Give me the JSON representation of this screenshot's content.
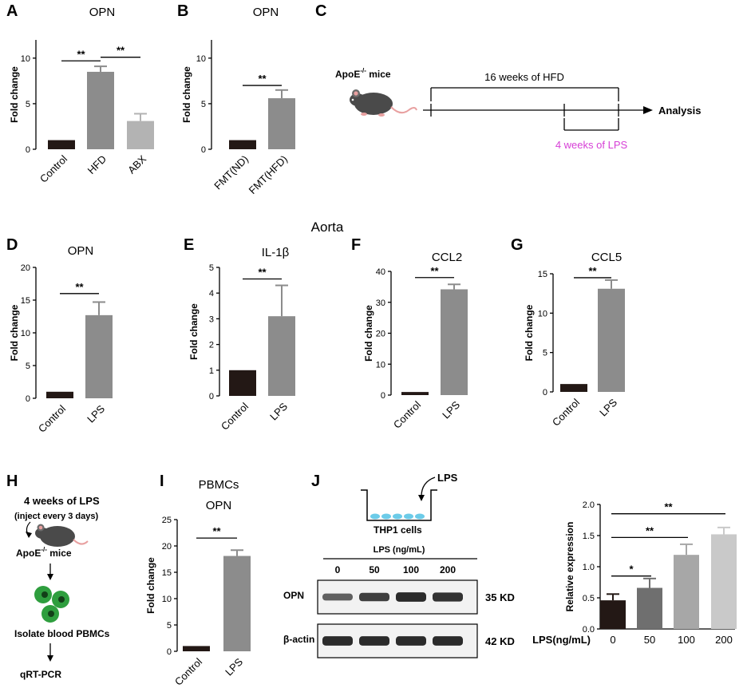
{
  "panels": {
    "A": "A",
    "B": "B",
    "C": "C",
    "D": "D",
    "E": "E",
    "F": "F",
    "G": "G",
    "H": "H",
    "I": "I",
    "J": "J"
  },
  "section_title": "Aorta",
  "colors": {
    "black_bar": "#231815",
    "grey_bar": "#8c8c8c",
    "light_bar": "#b3b3b3",
    "lighter_bar": "#c9c9c9",
    "lps_pink": "#d63fd6",
    "cell_blue": "#6ccbe8",
    "pbmc_green": "#2e9e3e"
  },
  "chart_data": [
    {
      "id": "A",
      "type": "bar",
      "title": "OPN",
      "xlabel": "",
      "ylabel": "Fold change",
      "categories": [
        "Control",
        "HFD",
        "ABX"
      ],
      "values": [
        1.0,
        8.5,
        3.1
      ],
      "errors": [
        0.0,
        0.6,
        0.8
      ],
      "ylim": [
        0,
        12
      ],
      "yticks": [
        "0",
        "5",
        "10"
      ],
      "sig": [
        "**",
        "**"
      ]
    },
    {
      "id": "B",
      "type": "bar",
      "title": "OPN",
      "xlabel": "",
      "ylabel": "Fold change",
      "categories": [
        "FMT(ND)",
        "FMT(HFD)"
      ],
      "values": [
        1.0,
        5.6
      ],
      "errors": [
        0.0,
        0.9
      ],
      "ylim": [
        0,
        12
      ],
      "yticks": [
        "0",
        "5",
        "10"
      ],
      "sig": [
        "**"
      ]
    },
    {
      "id": "D",
      "type": "bar",
      "title": "OPN",
      "xlabel": "",
      "ylabel": "Fold change",
      "categories": [
        "Control",
        "LPS"
      ],
      "values": [
        1.0,
        12.7
      ],
      "errors": [
        0.0,
        2.0
      ],
      "ylim": [
        0,
        20
      ],
      "yticks": [
        "0",
        "5",
        "10",
        "15",
        "20"
      ],
      "sig": [
        "**"
      ]
    },
    {
      "id": "E",
      "type": "bar",
      "title": "IL-1β",
      "xlabel": "",
      "ylabel": "Fold change",
      "categories": [
        "Control",
        "LPS"
      ],
      "values": [
        1.0,
        3.1
      ],
      "errors": [
        0.0,
        1.2
      ],
      "ylim": [
        0,
        5
      ],
      "yticks": [
        "0",
        "1",
        "2",
        "3",
        "4",
        "5"
      ],
      "sig": [
        "**"
      ]
    },
    {
      "id": "F",
      "type": "bar",
      "title": "CCL2",
      "xlabel": "",
      "ylabel": "Fold change",
      "categories": [
        "Control",
        "LPS"
      ],
      "values": [
        1.0,
        34.2
      ],
      "errors": [
        0.0,
        1.6
      ],
      "ylim": [
        0,
        40
      ],
      "yticks": [
        "0",
        "10",
        "20",
        "30",
        "40"
      ],
      "sig": [
        "**"
      ]
    },
    {
      "id": "G",
      "type": "bar",
      "title": "CCL5",
      "xlabel": "",
      "ylabel": "Fold change",
      "categories": [
        "Control",
        "LPS"
      ],
      "values": [
        1.0,
        13.1
      ],
      "errors": [
        0.0,
        1.1
      ],
      "ylim": [
        0,
        15
      ],
      "yticks": [
        "0",
        "5",
        "10",
        "15"
      ],
      "sig": [
        "**"
      ]
    },
    {
      "id": "I",
      "type": "bar",
      "title": "OPN",
      "subtitle": "PBMCs",
      "xlabel": "",
      "ylabel": "Fold change",
      "categories": [
        "Control",
        "LPS"
      ],
      "values": [
        1.0,
        18.1
      ],
      "errors": [
        0.0,
        1.1
      ],
      "ylim": [
        0,
        25
      ],
      "yticks": [
        "0",
        "5",
        "10",
        "15",
        "20",
        "25"
      ],
      "sig": [
        "**"
      ]
    },
    {
      "id": "J",
      "type": "bar",
      "title": "",
      "xlabel": "LPS(ng/mL)",
      "ylabel": "Relative expression",
      "categories": [
        "0",
        "50",
        "100",
        "200"
      ],
      "values": [
        0.46,
        0.66,
        1.19,
        1.52
      ],
      "errors": [
        0.1,
        0.15,
        0.17,
        0.11
      ],
      "ylim": [
        0,
        2.0
      ],
      "yticks": [
        "0.0",
        "0.5",
        "1.0",
        "1.5",
        "2.0"
      ],
      "sig": [
        "*",
        "**",
        "**"
      ]
    }
  ],
  "panel_C": {
    "mouse_label": "ApoE",
    "mouse_sup": "-/-",
    "mouse_suffix": " mice",
    "hfd_label": "16 weeks of HFD",
    "lps_label": "4 weeks of LPS",
    "end_label": "Analysis"
  },
  "panel_H": {
    "line1": "4 weeks of LPS",
    "line2": "(inject every 3 days)",
    "mouse_label": "ApoE",
    "mouse_sup": "-/-",
    "mouse_suffix": " mice",
    "step2": "Isolate blood PBMCs",
    "step3": "qRT-PCR"
  },
  "panel_J": {
    "lps_label": "LPS",
    "cells_label": "THP1 cells",
    "conc_header": "LPS (ng/mL)",
    "lanes": [
      "0",
      "50",
      "100",
      "200"
    ],
    "blots": [
      {
        "name": "OPN",
        "size": "35 KD",
        "intensity": [
          0.55,
          0.8,
          0.95,
          0.9
        ]
      },
      {
        "name": "β-actin",
        "size": "42 KD",
        "intensity": [
          0.95,
          0.95,
          0.95,
          0.95
        ]
      }
    ]
  }
}
